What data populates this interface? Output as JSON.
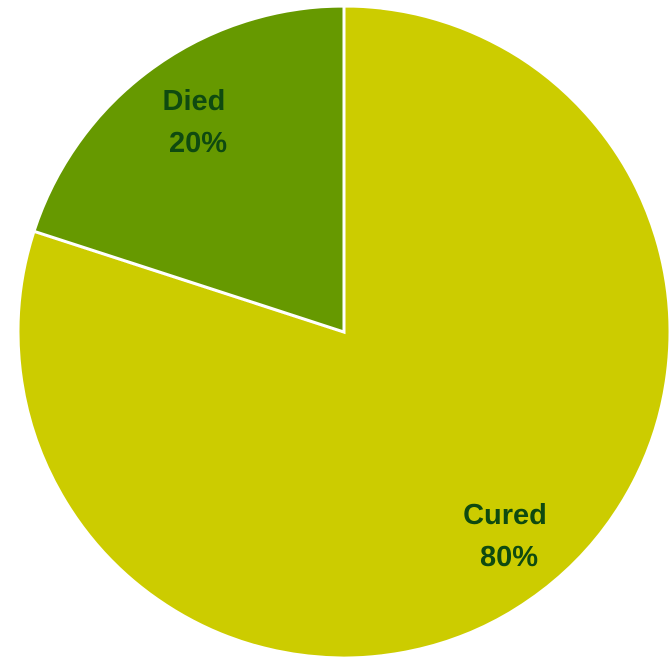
{
  "chart_data": {
    "type": "pie",
    "start_angle": "12 o'clock",
    "direction": "clockwise",
    "slices": [
      {
        "label": "Cured",
        "value": 80,
        "value_label": "80%",
        "color": "#cccc00"
      },
      {
        "label": "Died",
        "value": 20,
        "value_label": "20%",
        "color": "#669900"
      }
    ]
  }
}
